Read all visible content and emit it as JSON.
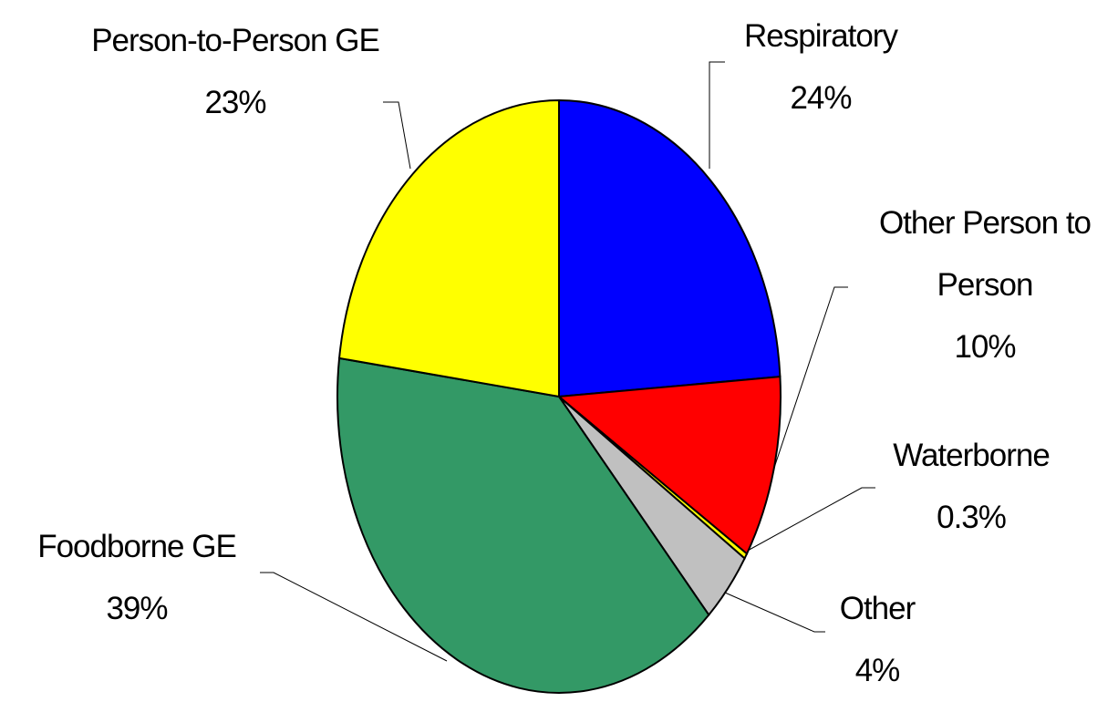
{
  "chart_data": {
    "type": "pie",
    "categories": [
      "Respiratory",
      "Other Person to Person",
      "Waterborne",
      "Other",
      "Foodborne GE",
      "Person-to-Person GE"
    ],
    "values": [
      24,
      10,
      0.3,
      4,
      39,
      23
    ],
    "value_labels": [
      "24%",
      "10%",
      "0.3%",
      "4%",
      "39%",
      "23%"
    ],
    "colors": [
      "#0000ff",
      "#ff0000",
      "#ffff00",
      "#c0c0c0",
      "#339966",
      "#ffff00"
    ]
  }
}
